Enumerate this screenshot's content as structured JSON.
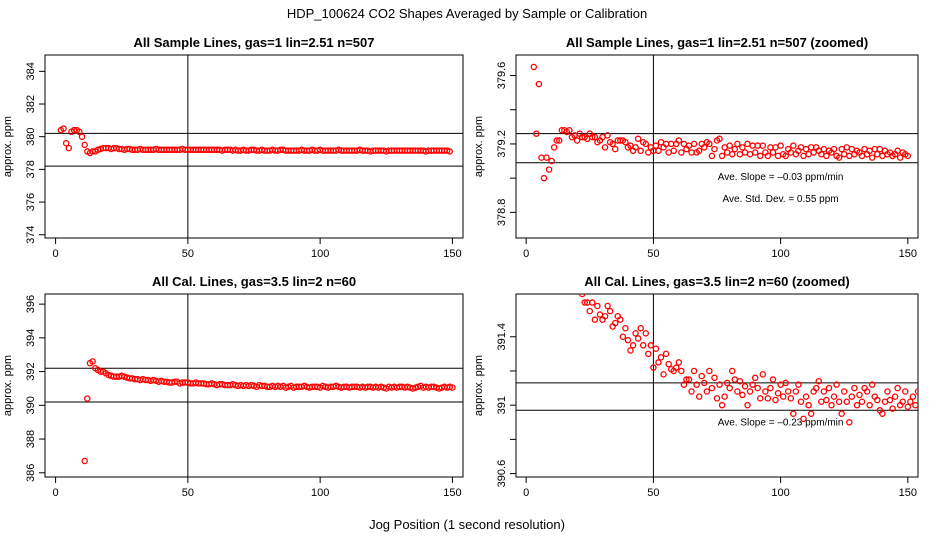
{
  "figure": {
    "title": "HDP_100624  CO2 Shapes Averaged by Sample or Calibration",
    "xlabel": "Jog Position (1 second resolution)"
  },
  "colors": {
    "points": "#ff0000",
    "axes": "#000000"
  },
  "chart_data": [
    {
      "type": "scatter",
      "title": "All Sample Lines, gas=1 lin=2.51 n=507",
      "ylabel": "approx. ppm",
      "xlim": [
        -4,
        154
      ],
      "ylim": [
        373.8,
        385
      ],
      "xticks": [
        0,
        50,
        100,
        150
      ],
      "yticks": [
        374,
        376,
        378,
        380,
        382,
        384
      ],
      "hlines": [
        380.2,
        378.2
      ],
      "vline": 50,
      "x_start": 2,
      "values": [
        380.4,
        380.5,
        379.6,
        379.3,
        380.3,
        380.4,
        380.4,
        380.3,
        380.0,
        379.5,
        379.1,
        379.0,
        379.1,
        379.1,
        379.2,
        379.25,
        379.3,
        379.3,
        379.3,
        379.25,
        379.3,
        379.3,
        379.25,
        379.25,
        379.2,
        379.25,
        379.25,
        379.2,
        379.2,
        379.2,
        379.25,
        379.2,
        379.2,
        379.2,
        379.2,
        379.2,
        379.25,
        379.2,
        379.2,
        379.2,
        379.2,
        379.2,
        379.2,
        379.2,
        379.2,
        379.2,
        379.25,
        379.2,
        379.2,
        379.2,
        379.2,
        379.2,
        379.2,
        379.2,
        379.2,
        379.2,
        379.2,
        379.2,
        379.2,
        379.2,
        379.2,
        379.15,
        379.2,
        379.2,
        379.2,
        379.15,
        379.2,
        379.15,
        379.15,
        379.2,
        379.15,
        379.15,
        379.2,
        379.2,
        379.15,
        379.15,
        379.2,
        379.15,
        379.15,
        379.15,
        379.2,
        379.15,
        379.15,
        379.2,
        379.2,
        379.15,
        379.15,
        379.15,
        379.15,
        379.15,
        379.15,
        379.2,
        379.15,
        379.15,
        379.15,
        379.2,
        379.15,
        379.15,
        379.2,
        379.15,
        379.15,
        379.15,
        379.15,
        379.15,
        379.15,
        379.2,
        379.15,
        379.15,
        379.15,
        379.15,
        379.15,
        379.15,
        379.15,
        379.2,
        379.15,
        379.15,
        379.15,
        379.1,
        379.15,
        379.15,
        379.15,
        379.15,
        379.15,
        379.1,
        379.15,
        379.15,
        379.15,
        379.15,
        379.15,
        379.15,
        379.15,
        379.15,
        379.15,
        379.15,
        379.15,
        379.15,
        379.15,
        379.15,
        379.1,
        379.15,
        379.15,
        379.15,
        379.15,
        379.15,
        379.15,
        379.15,
        379.15,
        379.1
      ],
      "annotations": []
    },
    {
      "type": "scatter",
      "title": "All Sample Lines, gas=1 lin=2.51 n=507 (zoomed)",
      "ylabel": "approx. ppm",
      "xlim": [
        -4,
        154
      ],
      "ylim": [
        378.65,
        379.72
      ],
      "xticks": [
        0,
        50,
        100,
        150
      ],
      "yticks": [
        378.8,
        379.2,
        379.6
      ],
      "yticks_minor": [
        379.0,
        379.4
      ],
      "hlines": [
        379.26,
        379.09
      ],
      "vline": 50,
      "x_start": 3,
      "values": [
        379.65,
        379.26,
        379.55,
        379.12,
        379.0,
        379.12,
        379.05,
        379.1,
        379.18,
        379.22,
        379.22,
        379.28,
        379.28,
        379.27,
        379.28,
        379.24,
        379.25,
        379.22,
        379.26,
        379.24,
        379.24,
        379.23,
        379.26,
        379.24,
        379.24,
        379.21,
        379.22,
        379.24,
        379.18,
        379.25,
        379.21,
        379.2,
        379.17,
        379.22,
        379.22,
        379.22,
        379.21,
        379.18,
        379.19,
        379.16,
        379.18,
        379.23,
        379.16,
        379.21,
        379.2,
        379.15,
        379.18,
        379.16,
        379.19,
        379.16,
        379.21,
        379.18,
        379.2,
        379.15,
        379.2,
        379.16,
        379.2,
        379.22,
        379.15,
        379.2,
        379.17,
        379.19,
        379.15,
        379.2,
        379.15,
        379.16,
        379.2,
        379.18,
        379.21,
        379.2,
        379.13,
        379.17,
        379.22,
        379.23,
        379.13,
        379.18,
        379.15,
        379.19,
        379.14,
        379.17,
        379.2,
        379.14,
        379.18,
        379.15,
        379.2,
        379.14,
        379.19,
        379.15,
        379.19,
        379.13,
        379.19,
        379.15,
        379.13,
        379.18,
        379.15,
        379.18,
        379.13,
        379.19,
        379.14,
        379.13,
        379.17,
        379.15,
        379.19,
        379.14,
        379.16,
        379.18,
        379.13,
        379.17,
        379.14,
        379.18,
        379.15,
        379.18,
        379.16,
        379.14,
        379.17,
        379.13,
        379.16,
        379.15,
        379.17,
        379.13,
        379.12,
        379.17,
        379.14,
        379.18,
        379.13,
        379.17,
        379.14,
        379.16,
        379.15,
        379.13,
        379.17,
        379.14,
        379.16,
        379.12,
        379.17,
        379.14,
        379.17,
        379.13,
        379.16,
        379.14,
        379.15,
        379.13,
        379.14,
        379.16,
        379.12,
        379.15,
        379.14,
        379.13
      ],
      "annotations": [
        {
          "text": "Ave. Slope =  –0.03  ppm/min",
          "x": 100,
          "y": 378.99
        },
        {
          "text": "Ave. Std. Dev. =  0.55  ppm",
          "x": 100,
          "y": 378.86
        }
      ]
    },
    {
      "type": "scatter",
      "title": "All Cal. Lines, gas=3.5 lin=2 n=60",
      "ylabel": "approx. ppm",
      "xlim": [
        -4,
        154
      ],
      "ylim": [
        385.75,
        396.6
      ],
      "xticks": [
        0,
        50,
        100,
        150
      ],
      "yticks": [
        386,
        388,
        390,
        392,
        394,
        396
      ],
      "hlines": [
        392.2,
        390.2
      ],
      "vline": 50,
      "x_start": 11,
      "values": [
        386.7,
        390.4,
        392.5,
        392.6,
        392.2,
        392.1,
        392.0,
        392.0,
        391.9,
        391.8,
        391.75,
        391.7,
        391.7,
        391.7,
        391.75,
        391.7,
        391.65,
        391.6,
        391.6,
        391.55,
        391.55,
        391.5,
        391.55,
        391.5,
        391.5,
        391.45,
        391.5,
        391.45,
        391.4,
        391.45,
        391.4,
        391.4,
        391.35,
        391.35,
        391.4,
        391.4,
        391.3,
        391.35,
        391.35,
        391.35,
        391.3,
        391.3,
        391.35,
        391.3,
        391.3,
        391.3,
        391.25,
        391.25,
        391.3,
        391.25,
        391.2,
        391.25,
        391.25,
        391.2,
        391.2,
        391.2,
        391.25,
        391.2,
        391.15,
        391.2,
        391.15,
        391.2,
        391.15,
        391.2,
        391.15,
        391.1,
        391.2,
        391.15,
        391.15,
        391.1,
        391.1,
        391.15,
        391.1,
        391.15,
        391.1,
        391.15,
        391.05,
        391.1,
        391.15,
        391.05,
        391.1,
        391.1,
        391.1,
        391.15,
        391.1,
        391.05,
        391.1,
        391.1,
        391.1,
        391.05,
        391.15,
        391.1,
        391.05,
        391.1,
        391.1,
        391.15,
        391.1,
        391.05,
        391.1,
        391.1,
        391.05,
        391.1,
        391.1,
        391.1,
        391.05,
        391.1,
        391.05,
        391.1,
        391.1,
        391.05,
        391.1,
        391.05,
        391.1,
        391.05,
        391.0,
        391.1,
        391.05,
        391.1,
        391.05,
        391.1,
        391.1,
        391.05,
        391.1,
        391.05,
        391.0,
        391.05,
        391.1,
        391.15,
        391.05,
        391.1,
        391.05,
        391.1,
        391.1,
        391.05,
        391.0,
        391.05,
        391.1,
        391.05,
        391.1,
        391.05
      ],
      "annotations": []
    },
    {
      "type": "scatter",
      "title": "All Cal. Lines, gas=3.5 lin=2 n=60 (zoomed)",
      "ylabel": "approx. ppm",
      "xlim": [
        -4,
        154
      ],
      "ylim": [
        390.58,
        391.65
      ],
      "xticks": [
        0,
        50,
        100,
        150
      ],
      "yticks": [
        390.6,
        391.0,
        391.4
      ],
      "yticks_minor": [
        390.8,
        391.2
      ],
      "hlines": [
        391.13,
        390.97
      ],
      "vline": 50,
      "x_start": 22,
      "values": [
        391.65,
        391.6,
        391.6,
        391.55,
        391.6,
        391.5,
        391.58,
        391.53,
        391.5,
        391.52,
        391.58,
        391.55,
        391.46,
        391.48,
        391.52,
        391.5,
        391.4,
        391.45,
        391.38,
        391.32,
        391.35,
        391.42,
        391.39,
        391.45,
        391.35,
        391.42,
        391.3,
        391.35,
        391.22,
        391.33,
        391.25,
        391.28,
        391.18,
        391.3,
        391.24,
        391.21,
        391.2,
        391.22,
        391.25,
        391.2,
        391.12,
        391.15,
        391.15,
        391.08,
        391.2,
        391.12,
        391.05,
        391.17,
        391.13,
        391.08,
        391.2,
        391.1,
        391.16,
        391.04,
        391.12,
        391.0,
        391.05,
        391.13,
        391.1,
        391.2,
        391.15,
        391.08,
        391.14,
        391.06,
        391.11,
        391.0,
        391.08,
        391.12,
        391.16,
        391.1,
        391.04,
        391.18,
        391.08,
        391.04,
        391.1,
        391.15,
        391.03,
        391.07,
        391.12,
        391.05,
        391.13,
        391.08,
        391.04,
        390.95,
        391.08,
        391.12,
        391.02,
        390.92,
        391.05,
        391.0,
        390.95,
        391.08,
        391.1,
        391.14,
        391.02,
        391.08,
        391.03,
        391.1,
        391.0,
        391.05,
        391.12,
        391.02,
        390.95,
        391.08,
        391.02,
        390.9,
        391.05,
        391.1,
        391.0,
        391.06,
        391.02,
        391.1,
        391.08,
        391.0,
        391.12,
        391.05,
        391.03,
        390.97,
        390.95,
        391.02,
        391.08,
        391.03,
        390.98,
        391.05,
        391.1,
        391.0,
        391.02,
        391.08,
        390.99,
        391.02,
        391.05,
        391.0,
        391.08,
        390.95,
        390.98,
        391.0,
        391.05,
        390.97,
        391.03,
        391.07,
        391.0,
        391.03,
        391.1,
        391.02
      ],
      "annotations": [
        {
          "text": "Ave. Slope =  –0.23  ppm/min",
          "x": 100,
          "y": 390.88
        }
      ]
    }
  ]
}
